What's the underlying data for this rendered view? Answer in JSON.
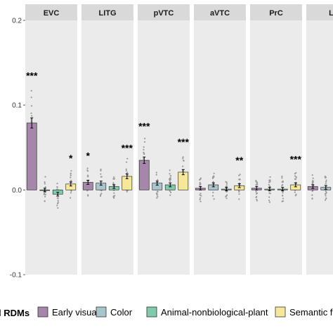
{
  "chart_data": {
    "type": "bar",
    "panels": [
      "EVC",
      "LITG",
      "pVTC",
      "aVTC",
      "PrC",
      "LI"
    ],
    "series": [
      {
        "name": "Early visual",
        "color": "#a686ab",
        "values": [
          0.079,
          0.009,
          0.035,
          0.002,
          0.002,
          0.004
        ]
      },
      {
        "name": "Color",
        "color": "#a8c4cc",
        "values": [
          0.0,
          0.008,
          0.008,
          0.006,
          0.001,
          0.003
        ]
      },
      {
        "name": "Animal-nonbiological-plant",
        "color": "#7fcbac",
        "values": [
          -0.005,
          0.004,
          0.006,
          0.001,
          0.001,
          0.002
        ]
      },
      {
        "name": "Semantic f",
        "color": "#f5e999",
        "values": [
          0.007,
          0.016,
          0.021,
          0.005,
          0.006,
          0.002
        ]
      }
    ],
    "significance": [
      [
        "***",
        "",
        "",
        "*"
      ],
      [
        "*",
        "",
        "",
        "***"
      ],
      [
        "***",
        "",
        "",
        "***"
      ],
      [
        "",
        "",
        "",
        "**"
      ],
      [
        "",
        "",
        "",
        "***"
      ],
      [
        "",
        "",
        "",
        ""
      ]
    ],
    "yticks": [
      "-0.1",
      "0.0",
      "0.1",
      "0.2"
    ],
    "ylim": [
      -0.1,
      0.2
    ],
    "legend_title": "l RDMs",
    "legend_position": "bottom",
    "grid": false
  }
}
